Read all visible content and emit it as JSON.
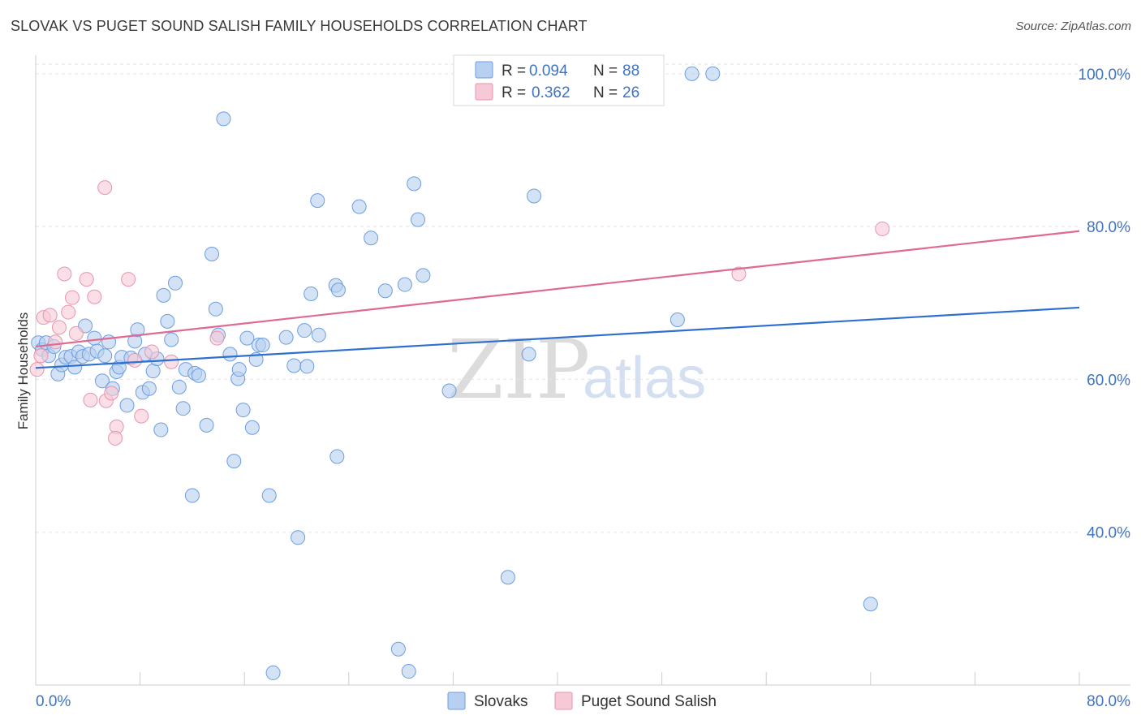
{
  "title": "SLOVAK VS PUGET SOUND SALISH FAMILY HOUSEHOLDS CORRELATION CHART",
  "source": "Source: ZipAtlas.com",
  "watermark": {
    "zip": "ZIP",
    "atlas": "atlas"
  },
  "chart_data": {
    "type": "scatter",
    "ylabel": "Family Households",
    "xlim": [
      0,
      80
    ],
    "ylim": [
      20,
      102
    ],
    "y_ticks": [
      {
        "value": 100,
        "label": "100.0%"
      },
      {
        "value": 80,
        "label": "80.0%"
      },
      {
        "value": 60,
        "label": "60.0%"
      },
      {
        "value": 40,
        "label": "40.0%"
      }
    ],
    "x_tick_values": [
      0,
      8,
      16,
      24,
      32,
      40,
      48,
      56,
      64,
      72,
      80
    ],
    "x_label_left": "0.0%",
    "x_label_right": "80.0%",
    "legend": [
      {
        "r_label": "R =",
        "r_value": "0.094",
        "n_label": "N =",
        "n_value": "88"
      },
      {
        "r_label": "R =",
        "r_value": "0.362",
        "n_label": "N =",
        "n_value": "26"
      }
    ],
    "series": [
      {
        "name": "Slovaks",
        "color": "#6c9ee0",
        "fill": "#b7cff0",
        "line_color": "#2f6fd0",
        "trend": [
          [
            0,
            61.5
          ],
          [
            80,
            69.4
          ]
        ],
        "points": [
          [
            0.2,
            64.8
          ],
          [
            0.5,
            63.9
          ],
          [
            0.8,
            64.8
          ],
          [
            1.0,
            63.1
          ],
          [
            1.4,
            64.3
          ],
          [
            1.7,
            60.7
          ],
          [
            2.0,
            61.9
          ],
          [
            2.3,
            62.9
          ],
          [
            2.7,
            63.0
          ],
          [
            3.0,
            61.6
          ],
          [
            3.3,
            63.6
          ],
          [
            3.6,
            63.0
          ],
          [
            3.8,
            67.0
          ],
          [
            4.1,
            63.3
          ],
          [
            4.5,
            65.4
          ],
          [
            4.7,
            63.7
          ],
          [
            5.1,
            59.8
          ],
          [
            5.3,
            63.1
          ],
          [
            5.6,
            64.9
          ],
          [
            5.9,
            58.8
          ],
          [
            6.2,
            61.0
          ],
          [
            6.4,
            61.6
          ],
          [
            6.6,
            62.9
          ],
          [
            7.0,
            56.6
          ],
          [
            7.3,
            62.8
          ],
          [
            7.6,
            65.0
          ],
          [
            7.8,
            66.5
          ],
          [
            8.2,
            58.3
          ],
          [
            8.4,
            63.3
          ],
          [
            8.7,
            58.8
          ],
          [
            9.0,
            61.1
          ],
          [
            9.3,
            62.7
          ],
          [
            9.6,
            53.4
          ],
          [
            9.8,
            71.0
          ],
          [
            10.1,
            67.6
          ],
          [
            10.4,
            65.2
          ],
          [
            10.7,
            72.6
          ],
          [
            11.0,
            59.0
          ],
          [
            11.3,
            56.2
          ],
          [
            11.5,
            61.3
          ],
          [
            12.2,
            60.8
          ],
          [
            12.5,
            60.5
          ],
          [
            13.1,
            54.0
          ],
          [
            13.5,
            76.4
          ],
          [
            13.8,
            69.2
          ],
          [
            14.0,
            65.8
          ],
          [
            12.0,
            44.8
          ],
          [
            14.4,
            94.1
          ],
          [
            14.9,
            63.3
          ],
          [
            15.2,
            49.3
          ],
          [
            15.5,
            60.1
          ],
          [
            15.6,
            61.3
          ],
          [
            15.9,
            56.0
          ],
          [
            16.2,
            65.4
          ],
          [
            16.6,
            53.7
          ],
          [
            16.9,
            62.6
          ],
          [
            17.1,
            64.5
          ],
          [
            17.4,
            64.5
          ],
          [
            17.9,
            44.8
          ],
          [
            18.2,
            21.6
          ],
          [
            19.2,
            65.5
          ],
          [
            19.8,
            61.8
          ],
          [
            20.1,
            39.3
          ],
          [
            20.6,
            66.4
          ],
          [
            20.8,
            61.7
          ],
          [
            21.1,
            71.2
          ],
          [
            21.6,
            83.4
          ],
          [
            21.7,
            65.8
          ],
          [
            23.0,
            72.3
          ],
          [
            23.2,
            71.7
          ],
          [
            23.1,
            49.9
          ],
          [
            24.8,
            82.6
          ],
          [
            25.7,
            78.5
          ],
          [
            26.8,
            71.6
          ],
          [
            27.8,
            24.7
          ],
          [
            28.3,
            72.4
          ],
          [
            28.6,
            21.8
          ],
          [
            29.0,
            85.6
          ],
          [
            29.3,
            80.9
          ],
          [
            29.7,
            73.6
          ],
          [
            31.7,
            58.5
          ],
          [
            36.2,
            34.1
          ],
          [
            37.8,
            63.3
          ],
          [
            38.2,
            84.0
          ],
          [
            49.2,
            67.8
          ],
          [
            50.3,
            100.0
          ],
          [
            51.9,
            100.0
          ],
          [
            64.0,
            30.6
          ]
        ]
      },
      {
        "name": "Puget Sound Salish",
        "color": "#e993ad",
        "fill": "#f6c9d6",
        "line_color": "#df6a91",
        "trend": [
          [
            0,
            64.3
          ],
          [
            80,
            79.4
          ]
        ],
        "points": [
          [
            0.1,
            61.3
          ],
          [
            0.4,
            63.1
          ],
          [
            0.6,
            68.1
          ],
          [
            1.1,
            68.4
          ],
          [
            1.5,
            64.9
          ],
          [
            1.8,
            66.8
          ],
          [
            2.2,
            73.8
          ],
          [
            2.5,
            68.8
          ],
          [
            2.8,
            70.7
          ],
          [
            3.1,
            66.0
          ],
          [
            3.9,
            73.1
          ],
          [
            4.2,
            57.3
          ],
          [
            4.5,
            70.8
          ],
          [
            5.3,
            85.1
          ],
          [
            5.4,
            57.2
          ],
          [
            5.8,
            58.2
          ],
          [
            6.2,
            53.8
          ],
          [
            6.1,
            52.3
          ],
          [
            7.1,
            73.1
          ],
          [
            7.6,
            62.5
          ],
          [
            8.1,
            55.2
          ],
          [
            8.9,
            63.6
          ],
          [
            10.4,
            62.3
          ],
          [
            13.9,
            65.4
          ],
          [
            64.9,
            79.7
          ],
          [
            53.9,
            73.8
          ]
        ]
      }
    ]
  }
}
